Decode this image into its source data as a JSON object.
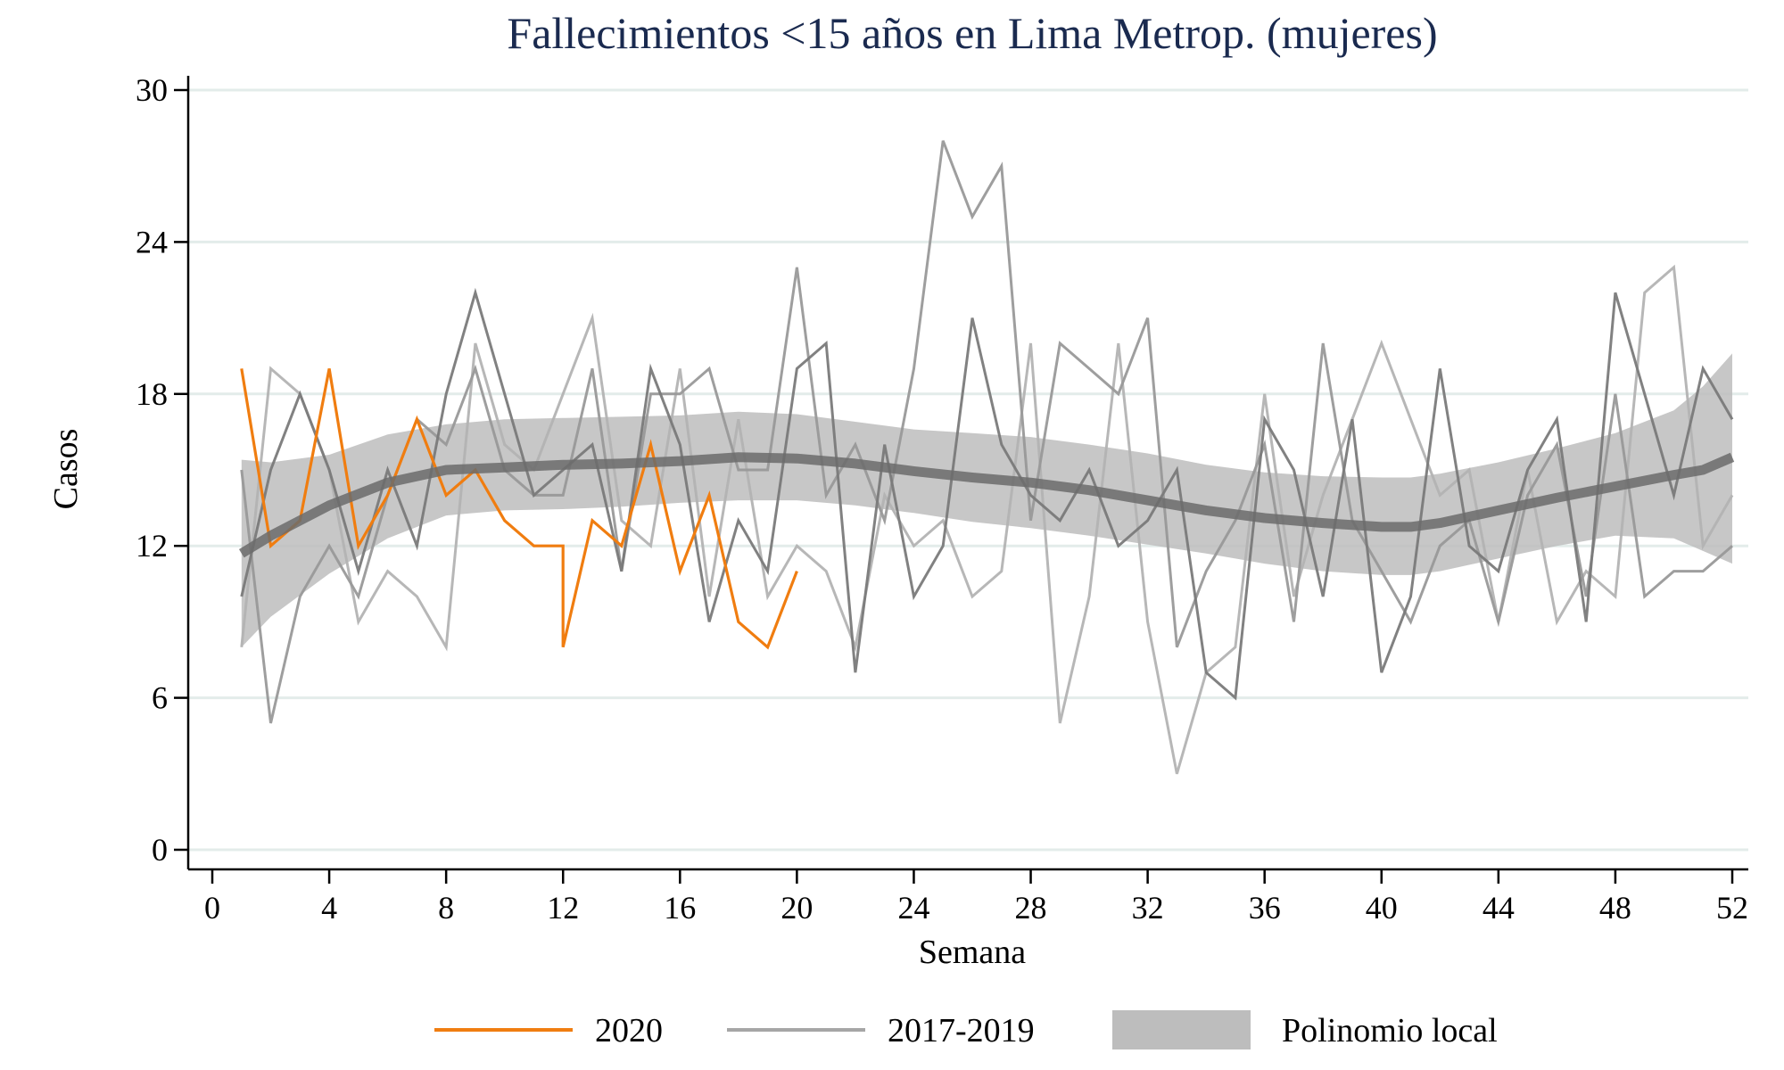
{
  "chart_data": {
    "type": "line",
    "title": "Fallecimientos <15 años en Lima Metrop. (mujeres)",
    "xlabel": "Semana",
    "ylabel": "Casos",
    "xlim": [
      0,
      52
    ],
    "ylim": [
      0,
      30
    ],
    "xticks": [
      0,
      4,
      8,
      12,
      16,
      20,
      24,
      28,
      32,
      36,
      40,
      44,
      48,
      52
    ],
    "yticks": [
      0,
      6,
      12,
      18,
      24,
      30
    ],
    "grid": true,
    "legend_position": "bottom",
    "colors": {
      "series_2020": "#f07d10",
      "historical_light": "#b3b3b3",
      "historical_mid": "#999999",
      "historical_dark": "#7a7a7a",
      "fit_line": "#6b6b6b",
      "band": "#bdbdbd"
    },
    "legend": [
      {
        "label": "2020",
        "kind": "line",
        "color": "#f07d10"
      },
      {
        "label": "2017-2019",
        "kind": "line",
        "color": "#a6a6a6"
      },
      {
        "label": "Polinomio local",
        "kind": "area",
        "color": "#bdbdbd"
      }
    ],
    "series": [
      {
        "values": [
          19,
          12,
          13,
          19,
          12,
          14,
          17,
          14,
          15,
          13,
          12,
          12,
          8,
          13,
          12,
          16,
          11,
          14,
          9,
          8,
          11
        ],
        "x": [
          1,
          2,
          3,
          4,
          5,
          6,
          7,
          8,
          9,
          10,
          11,
          12,
          12,
          13,
          14,
          15,
          16,
          17,
          18,
          19,
          20
        ],
        "color": "#f07d10"
      },
      {
        "x": [
          1,
          2,
          3,
          4,
          5,
          6,
          7,
          8,
          9,
          10,
          11,
          12,
          13,
          14,
          15,
          16,
          17,
          18,
          19,
          20,
          21,
          22,
          23,
          24,
          25,
          26,
          27,
          28,
          29,
          30,
          31,
          32,
          33,
          34,
          35,
          36,
          37,
          38,
          39,
          40,
          41,
          42,
          43,
          44,
          45,
          46,
          47,
          48,
          49,
          50,
          51,
          52
        ],
        "values": [
          8,
          19,
          18,
          15,
          9,
          11,
          10,
          8,
          20,
          16,
          15,
          18,
          21,
          13,
          12,
          19,
          10,
          17,
          10,
          12,
          11,
          8,
          14,
          12,
          13,
          10,
          11,
          20,
          5,
          10,
          20,
          9,
          3,
          7,
          8,
          18,
          10,
          14,
          17,
          20,
          17,
          14,
          15,
          9,
          15,
          9,
          11,
          10,
          22,
          23,
          12,
          14
        ],
        "color": "#b3b3b3"
      },
      {
        "x": [
          1,
          2,
          3,
          4,
          5,
          6,
          7,
          8,
          9,
          10,
          11,
          12,
          13,
          14,
          15,
          16,
          17,
          18,
          19,
          20,
          21,
          22,
          23,
          24,
          25,
          26,
          27,
          28,
          29,
          30,
          31,
          32,
          33,
          34,
          35,
          36,
          37,
          38,
          39,
          40,
          41,
          42,
          43,
          44,
          45,
          46,
          47,
          48,
          49,
          50,
          51,
          52
        ],
        "values": [
          15,
          5,
          10,
          12,
          10,
          14,
          17,
          16,
          19,
          15,
          14,
          14,
          19,
          11,
          18,
          18,
          19,
          15,
          15,
          23,
          14,
          16,
          13,
          19,
          28,
          25,
          27,
          13,
          20,
          19,
          18,
          21,
          8,
          11,
          13,
          16,
          9,
          20,
          13,
          11,
          9,
          12,
          13,
          9,
          14,
          16,
          10,
          18,
          10,
          11,
          11,
          12
        ],
        "color": "#999999"
      },
      {
        "x": [
          1,
          2,
          3,
          4,
          5,
          6,
          7,
          8,
          9,
          10,
          11,
          12,
          13,
          14,
          15,
          16,
          17,
          18,
          19,
          20,
          21,
          22,
          23,
          24,
          25,
          26,
          27,
          28,
          29,
          30,
          31,
          32,
          33,
          34,
          35,
          36,
          37,
          38,
          39,
          40,
          41,
          42,
          43,
          44,
          45,
          46,
          47,
          48,
          49,
          50,
          51,
          52
        ],
        "values": [
          10,
          15,
          18,
          15,
          11,
          15,
          12,
          18,
          22,
          18,
          14,
          15,
          16,
          11,
          19,
          16,
          9,
          13,
          11,
          19,
          20,
          7,
          16,
          10,
          12,
          21,
          16,
          14,
          13,
          15,
          12,
          13,
          15,
          7,
          6,
          17,
          15,
          10,
          17,
          7,
          10,
          19,
          12,
          11,
          15,
          17,
          9,
          22,
          18,
          14,
          19,
          17
        ],
        "color": "#7a7a7a"
      }
    ],
    "fit": {
      "x": [
        1,
        2,
        4,
        6,
        8,
        10,
        12,
        14,
        16,
        18,
        20,
        22,
        24,
        26,
        28,
        30,
        32,
        34,
        36,
        38,
        40,
        41,
        42,
        44,
        46,
        48,
        50,
        51,
        52
      ],
      "y": [
        11.7,
        12.4,
        13.6,
        14.5,
        15.0,
        15.1,
        15.2,
        15.25,
        15.35,
        15.5,
        15.45,
        15.25,
        14.95,
        14.7,
        14.5,
        14.2,
        13.8,
        13.4,
        13.1,
        12.9,
        12.75,
        12.75,
        12.9,
        13.4,
        13.9,
        14.35,
        14.8,
        15.0,
        15.5
      ],
      "lower": [
        8.0,
        9.2,
        10.9,
        12.3,
        13.2,
        13.4,
        13.45,
        13.55,
        13.7,
        13.8,
        13.8,
        13.6,
        13.3,
        12.95,
        12.7,
        12.4,
        12.05,
        11.7,
        11.3,
        11.0,
        10.85,
        10.85,
        11.0,
        11.5,
        12.0,
        12.4,
        12.3,
        11.8,
        11.3
      ],
      "upper": [
        15.4,
        15.3,
        15.6,
        16.4,
        16.8,
        17.0,
        17.05,
        17.1,
        17.15,
        17.3,
        17.2,
        16.9,
        16.6,
        16.45,
        16.3,
        16.0,
        15.65,
        15.2,
        14.9,
        14.75,
        14.7,
        14.7,
        14.85,
        15.3,
        15.85,
        16.45,
        17.35,
        18.3,
        19.6
      ]
    }
  }
}
